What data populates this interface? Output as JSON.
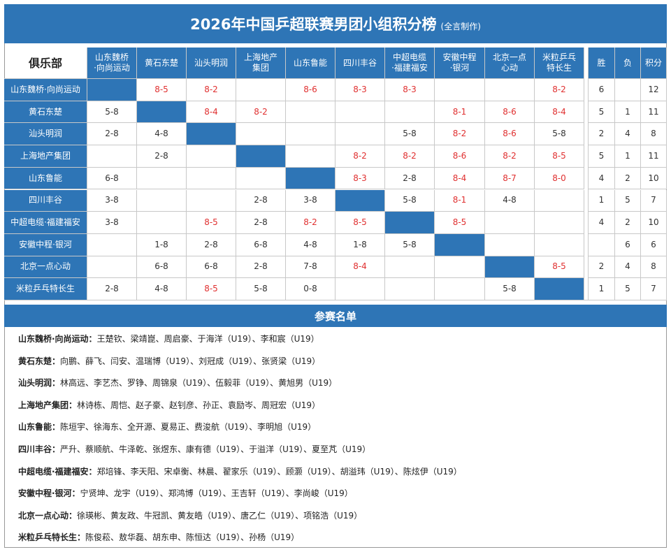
{
  "header": {
    "title": "2026年中国乒超联赛男团小组积分榜",
    "subtitle": "(全言制作)"
  },
  "table": {
    "club_header": "俱乐部",
    "columns": [
      [
        "山东魏桥",
        "·向尚运动"
      ],
      [
        "黄石东楚"
      ],
      [
        "汕头明润"
      ],
      [
        "上海地产",
        "集团"
      ],
      [
        "山东鲁能"
      ],
      [
        "四川丰谷"
      ],
      [
        "中超电缆",
        "·福建福安"
      ],
      [
        "安徽中程",
        "·银河"
      ],
      [
        "北京一点",
        "心动"
      ],
      [
        "米粒乒乓",
        "特长生"
      ]
    ],
    "stat_headers": [
      "胜",
      "负",
      "积分"
    ],
    "rows": [
      {
        "club": "山东魏桥·向尚运动",
        "results": [
          null,
          "8-5",
          "8-2",
          null,
          "8-6",
          "8-3",
          "8-3",
          null,
          null,
          "8-2"
        ],
        "wins": 6,
        "losses": null,
        "points": 12
      },
      {
        "club": "黄石东楚",
        "results": [
          "5-8",
          null,
          "8-4",
          "8-2",
          null,
          null,
          null,
          "8-1",
          "8-6",
          "8-4"
        ],
        "wins": 5,
        "losses": 1,
        "points": 11
      },
      {
        "club": "汕头明润",
        "results": [
          "2-8",
          "4-8",
          null,
          null,
          null,
          null,
          "5-8",
          "8-2",
          "8-6",
          "5-8"
        ],
        "wins": 2,
        "losses": 4,
        "points": 8
      },
      {
        "club": "上海地产集团",
        "results": [
          null,
          "2-8",
          null,
          null,
          null,
          "8-2",
          "8-2",
          "8-6",
          "8-2",
          "8-5"
        ],
        "wins": 5,
        "losses": 1,
        "points": 11
      },
      {
        "club": "山东鲁能",
        "results": [
          "6-8",
          null,
          null,
          null,
          null,
          "8-3",
          "2-8",
          "8-4",
          "8-7",
          "8-0"
        ],
        "wins": 4,
        "losses": 2,
        "points": 10
      },
      {
        "club": "四川丰谷",
        "results": [
          "3-8",
          null,
          null,
          "2-8",
          "3-8",
          null,
          "5-8",
          "8-1",
          "4-8",
          null
        ],
        "wins": 1,
        "losses": 5,
        "points": 7
      },
      {
        "club": "中超电缆·福建福安",
        "results": [
          "3-8",
          null,
          "8-5",
          "2-8",
          "8-2",
          "8-5",
          null,
          "8-5",
          null,
          null
        ],
        "wins": 4,
        "losses": 2,
        "points": 10
      },
      {
        "club": "安徽中程·银河",
        "results": [
          null,
          "1-8",
          "2-8",
          "6-8",
          "4-8",
          "1-8",
          "5-8",
          null,
          null,
          null
        ],
        "wins": null,
        "losses": 6,
        "points": 6
      },
      {
        "club": "北京一点心动",
        "results": [
          null,
          "6-8",
          "6-8",
          "2-8",
          "7-8",
          "8-4",
          null,
          null,
          null,
          "8-5"
        ],
        "wins": 2,
        "losses": 4,
        "points": 8
      },
      {
        "club": "米粒乒乓特长生",
        "results": [
          "2-8",
          "4-8",
          "8-5",
          "5-8",
          "0-8",
          null,
          null,
          null,
          "5-8",
          null
        ],
        "wins": 1,
        "losses": 5,
        "points": 7
      }
    ]
  },
  "roster": {
    "title": "参赛名单",
    "entries": [
      {
        "team": "山东魏桥·向尚运动：",
        "players": "王楚钦、梁靖崑、周启豪、于海洋（U19）、李和宸（U19）"
      },
      {
        "team": "黄石东楚：",
        "players": "向鹏、薛飞、闫安、温瑞博（U19）、刘冠成（U19）、张贤梁（U19）"
      },
      {
        "team": "汕头明润：",
        "players": "林高远、李艺杰、罗铮、周锦泉（U19）、伍毅菲（U19）、黄旭男（U19）"
      },
      {
        "team": "上海地产集团：",
        "players": "林诗栋、周恺、赵子豪、赵钊彦、孙正、袁励岑、周冠宏（U19）"
      },
      {
        "team": "山东鲁能：",
        "players": "陈垣宇、徐海东、全开源、夏易正、费浚航（U19）、李明旭（U19）"
      },
      {
        "team": "四川丰谷：",
        "players": "严升、蔡顺航、牛泽乾、张煜东、康有德（U19）、于溢洋（U19）、夏至芃（U19）"
      },
      {
        "team": "中超电缆·福建福安：",
        "players": "郑培锋、李天阳、宋卓衡、林晨、翟家乐（U19）、顾灏（U19）、胡溢玮（U19）、陈炫伊（U19）"
      },
      {
        "team": "安徽中程·银河：",
        "players": "宁贤坤、龙宇（U19）、郑鸿博（U19）、王吉轩（U19）、李尚峻（U19）"
      },
      {
        "team": "北京一点心动：",
        "players": "徐瑛彬、黄友政、牛冠凯、黄友皓（U19）、唐乙仁（U19）、项铭浩（U19）"
      },
      {
        "team": "米粒乒乓特长生：",
        "players": "陈俊菘、敖华磊、胡东申、陈恒达（U19）、孙杨（U19）"
      }
    ]
  }
}
